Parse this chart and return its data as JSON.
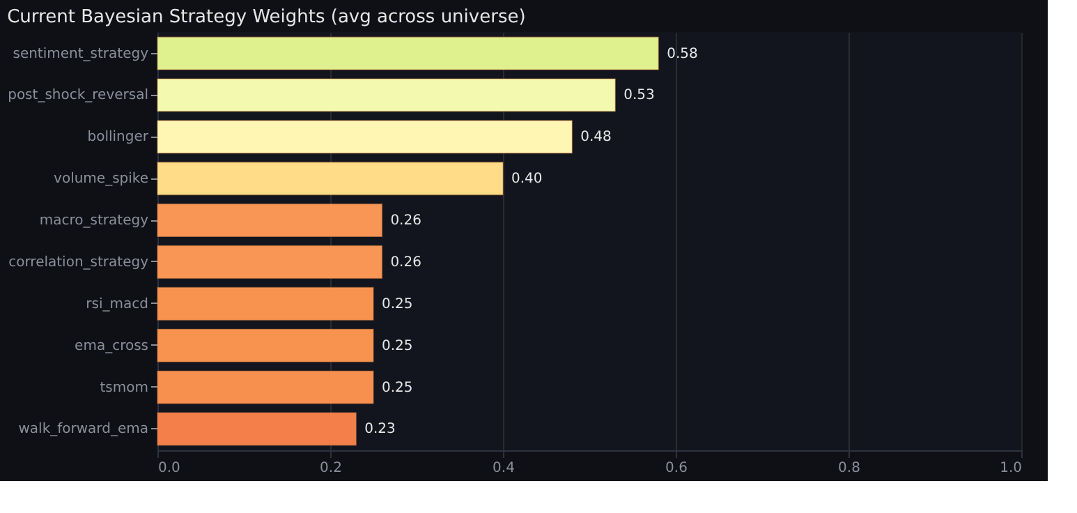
{
  "chart_data": {
    "type": "bar",
    "orientation": "horizontal",
    "title": "Current Bayesian Strategy Weights (avg across universe)",
    "categories": [
      "sentiment_strategy",
      "post_shock_reversal",
      "bollinger",
      "volume_spike",
      "macro_strategy",
      "correlation_strategy",
      "rsi_macd",
      "ema_cross",
      "tsmom",
      "walk_forward_ema"
    ],
    "values": [
      0.58,
      0.53,
      0.48,
      0.4,
      0.26,
      0.26,
      0.25,
      0.25,
      0.25,
      0.23
    ],
    "value_labels": [
      "0.58",
      "0.53",
      "0.48",
      "0.40",
      "0.26",
      "0.26",
      "0.25",
      "0.25",
      "0.25",
      "0.23"
    ],
    "colors": [
      "#dff08f",
      "#f3f9ae",
      "#fff6b3",
      "#fedc88",
      "#f99555",
      "#f99555",
      "#f8924f",
      "#f8924f",
      "#f78f4f",
      "#f57f4b"
    ],
    "xlim": [
      0,
      1
    ],
    "xticks": [
      {
        "value": 0,
        "label": "0.0"
      },
      {
        "value": 0.2,
        "label": "0.2"
      },
      {
        "value": 0.4,
        "label": "0.4"
      },
      {
        "value": 0.6,
        "label": "0.6"
      },
      {
        "value": 0.8,
        "label": "0.8"
      },
      {
        "value": 1,
        "label": "1.0"
      }
    ],
    "grid": "x"
  }
}
